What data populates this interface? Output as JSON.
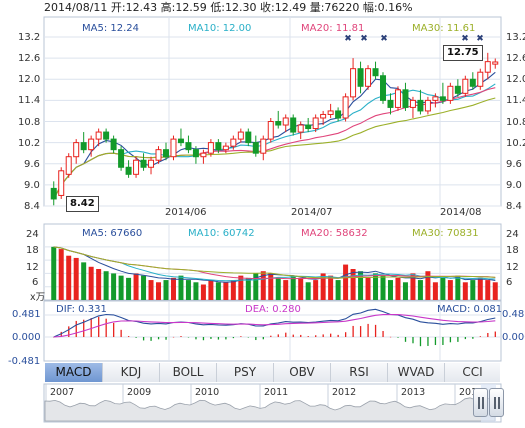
{
  "header": {
    "date": "2014/08/11",
    "open": "开:12.43",
    "high": "高:12.59",
    "low": "低:12.30",
    "close": "收:12.49",
    "volume": "量:76220",
    "change": "幅:0.16%"
  },
  "ma_price": {
    "ma5": "MA5: 12.24",
    "ma10": "MA10: 12.00",
    "ma20": "MA20: 11.81",
    "ma30": "MA30: 11.61"
  },
  "ma_volume": {
    "ma5": "MA5: 67660",
    "ma10": "MA10: 60742",
    "ma20": "MA20: 58632",
    "ma30": "MA30: 70831"
  },
  "macd": {
    "dif": "DIF: 0.331",
    "dea": "DEA: 0.280",
    "macd": "MACD: 0.081"
  },
  "price_axis": [
    "13.2",
    "12.6",
    "12.0",
    "11.4",
    "10.8",
    "10.2",
    "9.6",
    "9.0",
    "8.4"
  ],
  "volume_axis": [
    "24",
    "18",
    "12",
    "6"
  ],
  "volume_unit": "x万",
  "macd_axis": [
    "0.481",
    "0.000",
    "-0.481"
  ],
  "date_labels": [
    "2014/06",
    "2014/07",
    "2014/08"
  ],
  "callouts": {
    "high": "12.75",
    "low": "8.42"
  },
  "tabs": [
    "MACD",
    "KDJ",
    "BOLL",
    "PSY",
    "OBV",
    "RSI",
    "WVAD",
    "CCI"
  ],
  "active_tab": "MACD",
  "timeline_years": [
    "2007",
    "2009",
    "2010",
    "2011",
    "2012",
    "2013",
    "201"
  ],
  "colors": {
    "up": "#e8231f",
    "down": "#139a2b",
    "ma5": "#2a4f9c",
    "ma10": "#2ab0c8",
    "ma20": "#e0457b",
    "ma30": "#9cb02a",
    "grid": "#dce3ee",
    "tab_active": "#7fa2d8"
  },
  "chart_data": {
    "type": "candlestick",
    "ylim": [
      8.4,
      13.2
    ],
    "candles": [
      {
        "o": 8.9,
        "h": 9.1,
        "l": 8.42,
        "c": 8.6
      },
      {
        "o": 8.7,
        "h": 9.5,
        "l": 8.6,
        "c": 9.4
      },
      {
        "o": 9.3,
        "h": 9.9,
        "l": 9.2,
        "c": 9.8
      },
      {
        "o": 9.8,
        "h": 10.3,
        "l": 9.6,
        "c": 10.2
      },
      {
        "o": 10.2,
        "h": 10.5,
        "l": 9.9,
        "c": 10.0
      },
      {
        "o": 10.0,
        "h": 10.4,
        "l": 9.8,
        "c": 10.3
      },
      {
        "o": 10.3,
        "h": 10.6,
        "l": 10.1,
        "c": 10.5
      },
      {
        "o": 10.5,
        "h": 10.6,
        "l": 10.2,
        "c": 10.3
      },
      {
        "o": 10.3,
        "h": 10.4,
        "l": 9.9,
        "c": 10.0
      },
      {
        "o": 10.0,
        "h": 10.1,
        "l": 9.4,
        "c": 9.5
      },
      {
        "o": 9.5,
        "h": 9.7,
        "l": 9.2,
        "c": 9.3
      },
      {
        "o": 9.3,
        "h": 9.8,
        "l": 9.2,
        "c": 9.7
      },
      {
        "o": 9.7,
        "h": 9.9,
        "l": 9.4,
        "c": 9.5
      },
      {
        "o": 9.5,
        "h": 9.8,
        "l": 9.3,
        "c": 9.7
      },
      {
        "o": 9.7,
        "h": 10.1,
        "l": 9.6,
        "c": 10.0
      },
      {
        "o": 10.0,
        "h": 10.2,
        "l": 9.7,
        "c": 9.8
      },
      {
        "o": 9.8,
        "h": 10.4,
        "l": 9.7,
        "c": 10.3
      },
      {
        "o": 10.3,
        "h": 10.6,
        "l": 10.1,
        "c": 10.2
      },
      {
        "o": 10.2,
        "h": 10.4,
        "l": 9.9,
        "c": 10.0
      },
      {
        "o": 10.0,
        "h": 10.1,
        "l": 9.6,
        "c": 9.8
      },
      {
        "o": 9.8,
        "h": 10.0,
        "l": 9.6,
        "c": 9.9
      },
      {
        "o": 9.9,
        "h": 10.3,
        "l": 9.8,
        "c": 10.2
      },
      {
        "o": 10.2,
        "h": 10.3,
        "l": 9.9,
        "c": 10.0
      },
      {
        "o": 10.0,
        "h": 10.2,
        "l": 9.9,
        "c": 10.1
      },
      {
        "o": 10.1,
        "h": 10.4,
        "l": 10.0,
        "c": 10.3
      },
      {
        "o": 10.3,
        "h": 10.6,
        "l": 10.2,
        "c": 10.5
      },
      {
        "o": 10.5,
        "h": 10.6,
        "l": 10.1,
        "c": 10.2
      },
      {
        "o": 10.2,
        "h": 10.4,
        "l": 9.8,
        "c": 9.9
      },
      {
        "o": 9.9,
        "h": 10.4,
        "l": 9.7,
        "c": 10.3
      },
      {
        "o": 10.3,
        "h": 10.9,
        "l": 10.2,
        "c": 10.8
      },
      {
        "o": 10.8,
        "h": 11.1,
        "l": 10.6,
        "c": 10.7
      },
      {
        "o": 10.7,
        "h": 11.0,
        "l": 10.5,
        "c": 10.9
      },
      {
        "o": 10.9,
        "h": 11.0,
        "l": 10.4,
        "c": 10.5
      },
      {
        "o": 10.5,
        "h": 10.8,
        "l": 10.3,
        "c": 10.7
      },
      {
        "o": 10.7,
        "h": 10.9,
        "l": 10.5,
        "c": 10.6
      },
      {
        "o": 10.6,
        "h": 11.0,
        "l": 10.5,
        "c": 10.9
      },
      {
        "o": 10.9,
        "h": 11.1,
        "l": 10.7,
        "c": 11.0
      },
      {
        "o": 11.0,
        "h": 11.3,
        "l": 10.9,
        "c": 11.1
      },
      {
        "o": 11.1,
        "h": 11.2,
        "l": 10.8,
        "c": 10.9
      },
      {
        "o": 10.9,
        "h": 11.6,
        "l": 10.8,
        "c": 11.5
      },
      {
        "o": 11.5,
        "h": 12.6,
        "l": 11.4,
        "c": 12.3
      },
      {
        "o": 12.3,
        "h": 12.5,
        "l": 11.6,
        "c": 11.8
      },
      {
        "o": 11.8,
        "h": 12.4,
        "l": 11.7,
        "c": 12.3
      },
      {
        "o": 12.3,
        "h": 12.5,
        "l": 12.0,
        "c": 12.1
      },
      {
        "o": 12.1,
        "h": 12.2,
        "l": 11.3,
        "c": 11.4
      },
      {
        "o": 11.4,
        "h": 11.6,
        "l": 11.0,
        "c": 11.2
      },
      {
        "o": 11.2,
        "h": 11.8,
        "l": 11.1,
        "c": 11.7
      },
      {
        "o": 11.7,
        "h": 11.9,
        "l": 11.1,
        "c": 11.2
      },
      {
        "o": 11.2,
        "h": 11.5,
        "l": 10.9,
        "c": 11.4
      },
      {
        "o": 11.4,
        "h": 11.7,
        "l": 11.0,
        "c": 11.1
      },
      {
        "o": 11.1,
        "h": 11.5,
        "l": 11.0,
        "c": 11.4
      },
      {
        "o": 11.4,
        "h": 11.6,
        "l": 11.2,
        "c": 11.5
      },
      {
        "o": 11.5,
        "h": 11.9,
        "l": 11.3,
        "c": 11.4
      },
      {
        "o": 11.4,
        "h": 11.9,
        "l": 11.3,
        "c": 11.8
      },
      {
        "o": 11.8,
        "h": 12.0,
        "l": 11.5,
        "c": 11.6
      },
      {
        "o": 11.6,
        "h": 12.1,
        "l": 11.5,
        "c": 12.0
      },
      {
        "o": 12.0,
        "h": 12.2,
        "l": 11.7,
        "c": 11.8
      },
      {
        "o": 11.8,
        "h": 12.3,
        "l": 11.7,
        "c": 12.2
      },
      {
        "o": 12.2,
        "h": 12.75,
        "l": 12.0,
        "c": 12.5
      },
      {
        "o": 12.43,
        "h": 12.59,
        "l": 12.3,
        "c": 12.49
      }
    ]
  }
}
